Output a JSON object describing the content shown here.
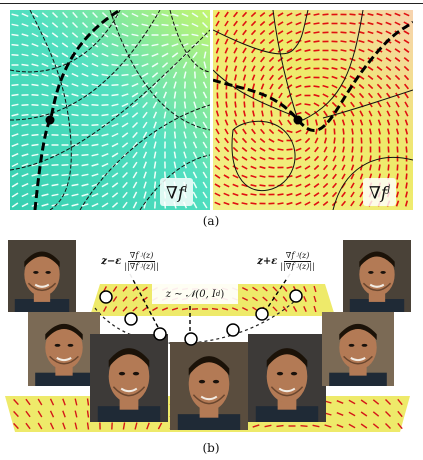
{
  "panel_a": {
    "left_label": "∇f",
    "left_label_sup": "i",
    "right_label": "∇f",
    "right_label_sup": "j",
    "caption": "(a)",
    "colors": {
      "left_bg_a": "#41d6b4",
      "left_bg_b": "#b6f06a",
      "left_dash": "#eafff8",
      "right_bg": "#f1ee70",
      "right_dash": "#e01010"
    }
  },
  "panel_b": {
    "caption": "(b)",
    "eq_minus": {
      "lhs": "z−ε",
      "num": "∇f ʲ(z)",
      "den": "||∇f ʲ(z)||"
    },
    "eq_center": {
      "text": "z ∼ 𝒩(0, I",
      "sub": "d",
      "close": ")"
    },
    "eq_plus": {
      "lhs": "z+ε",
      "num": "∇f ʲ(z)",
      "den": "||∇f ʲ(z)||"
    },
    "colors": {
      "surface": "#f0ec6a",
      "dash": "#d41818",
      "skin": "#b37a55",
      "hair": "#1b1208",
      "suit": "#1f2a36"
    }
  }
}
